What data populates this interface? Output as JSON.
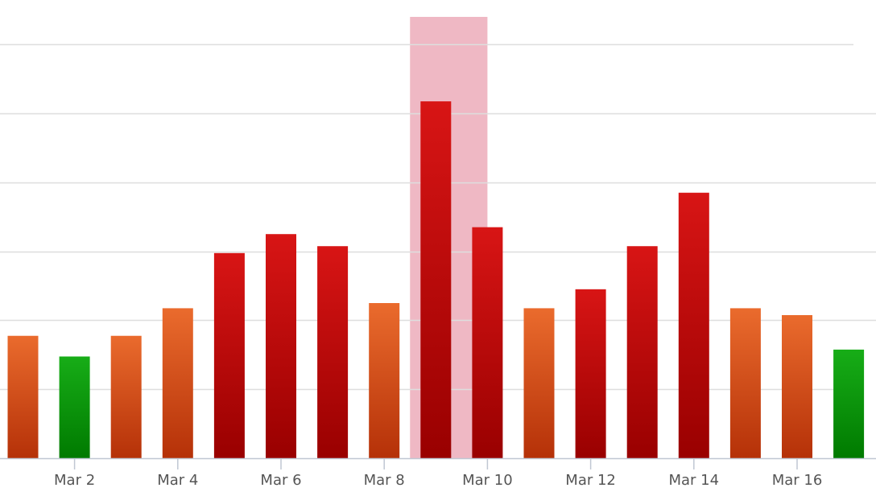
{
  "chart_data": {
    "type": "bar",
    "categories": [
      "Mar 1",
      "Mar 2",
      "Mar 3",
      "Mar 4",
      "Mar 5",
      "Mar 6",
      "Mar 7",
      "Mar 8",
      "Mar 9",
      "Mar 10",
      "Mar 11",
      "Mar 12",
      "Mar 13",
      "Mar 14",
      "Mar 15",
      "Mar 16",
      "Mar 17"
    ],
    "values": [
      3.55,
      2.95,
      3.55,
      4.35,
      5.95,
      6.5,
      6.15,
      4.5,
      10.35,
      6.7,
      4.35,
      4.9,
      6.15,
      7.7,
      4.35,
      4.15,
      3.15
    ],
    "levels": [
      "orange",
      "green",
      "orange",
      "orange",
      "red",
      "red",
      "red",
      "orange",
      "red",
      "red",
      "orange",
      "red",
      "red",
      "red",
      "orange",
      "orange",
      "green"
    ],
    "x_tick_labels": [
      "Mar 2",
      "Mar 4",
      "Mar 6",
      "Mar 8",
      "Mar 10",
      "Mar 12",
      "Mar 14",
      "Mar 16"
    ],
    "ylim": [
      0,
      12.8
    ],
    "y_gridlines": [
      0,
      2,
      4,
      6,
      8,
      10,
      12
    ],
    "y_tick_labels_visible": false,
    "highlight_band": [
      "Mar 9",
      "Mar 10"
    ],
    "grid": true,
    "title": "",
    "xlabel": "",
    "ylabel": ""
  },
  "colors": {
    "green_top": "#17ad17",
    "green_bottom": "#007a00",
    "orange_top": "#ea6b2d",
    "orange_bottom": "#b53108",
    "red_top": "#d81515",
    "red_bottom": "#990000",
    "highlight": "#efb8c4",
    "gridline": "#dedede",
    "axis": "#c0c7d3",
    "tick_text": "#555555"
  }
}
